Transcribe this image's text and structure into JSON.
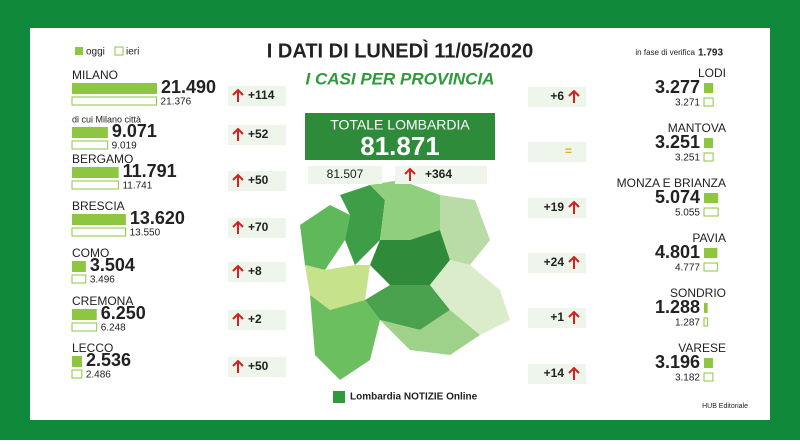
{
  "header": {
    "legend_today": "oggi",
    "legend_yesterday": "ieri",
    "title": "I DATI DI LUNEDÌ 11/05/2020",
    "subtitle": "I CASI PER PROVINCIA",
    "verify_label": "in fase di verifica",
    "verify_value": {
      "value": 1793,
      "label": "1.793"
    }
  },
  "total": {
    "label": "TOTALE LOMBARDIA",
    "today": {
      "value": 81871,
      "label": "81.871"
    },
    "yesterday": {
      "value": 81507,
      "label": "81.507"
    },
    "delta": "+364"
  },
  "left": [
    {
      "name": "MILANO",
      "today": {
        "value": 21490,
        "label": "21.490"
      },
      "yesterday": {
        "value": 21376,
        "label": "21.376"
      },
      "delta": "+114"
    },
    {
      "name": "di cui Milano città",
      "today": {
        "value": 9071,
        "label": "9.071"
      },
      "yesterday": {
        "value": 9019,
        "label": "9.019"
      },
      "delta": "+52"
    },
    {
      "name": "BERGAMO",
      "today": {
        "value": 11791,
        "label": "11.791"
      },
      "yesterday": {
        "value": 11741,
        "label": "11.741"
      },
      "delta": "+50"
    },
    {
      "name": "BRESCIA",
      "today": {
        "value": 13620,
        "label": "13.620"
      },
      "yesterday": {
        "value": 13550,
        "label": "13.550"
      },
      "delta": "+70"
    },
    {
      "name": "COMO",
      "today": {
        "value": 3504,
        "label": "3.504"
      },
      "yesterday": {
        "value": 3496,
        "label": "3.496"
      },
      "delta": "+8"
    },
    {
      "name": "CREMONA",
      "today": {
        "value": 6250,
        "label": "6.250"
      },
      "yesterday": {
        "value": 6248,
        "label": "6.248"
      },
      "delta": "+2"
    },
    {
      "name": "LECCO",
      "today": {
        "value": 2536,
        "label": "2.536"
      },
      "yesterday": {
        "value": 2486,
        "label": "2.486"
      },
      "delta": "+50"
    }
  ],
  "right": [
    {
      "name": "LODI",
      "today": {
        "value": 3277,
        "label": "3.277"
      },
      "yesterday": {
        "value": 3271,
        "label": "3.271"
      },
      "delta": "+6"
    },
    {
      "name": "MANTOVA",
      "today": {
        "value": 3251,
        "label": "3.251"
      },
      "yesterday": {
        "value": 3251,
        "label": "3.251"
      },
      "delta": "="
    },
    {
      "name": "MONZA E BRIANZA",
      "today": {
        "value": 5074,
        "label": "5.074"
      },
      "yesterday": {
        "value": 5055,
        "label": "5.055"
      },
      "delta": "+19"
    },
    {
      "name": "PAVIA",
      "today": {
        "value": 4801,
        "label": "4.801"
      },
      "yesterday": {
        "value": 4777,
        "label": "4.777"
      },
      "delta": "+24"
    },
    {
      "name": "SONDRIO",
      "today": {
        "value": 1288,
        "label": "1.288"
      },
      "yesterday": {
        "value": 1287,
        "label": "1.287"
      },
      "delta": "+1"
    },
    {
      "name": "VARESE",
      "today": {
        "value": 3196,
        "label": "3.196"
      },
      "yesterday": {
        "value": 3182,
        "label": "3.182"
      },
      "delta": "+14"
    }
  ],
  "footer": {
    "brand": "Lombardia NOTIZIE Online",
    "credit": "HUB Editoriale"
  }
}
